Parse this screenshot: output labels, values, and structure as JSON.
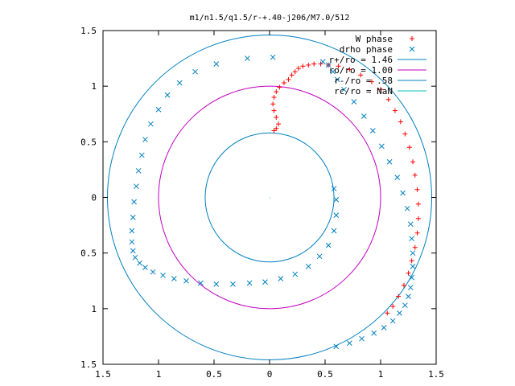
{
  "chart_data": {
    "type": "scatter",
    "title": "m1/n1.5/q1.5/r-+.40-j206/M7.0/512",
    "xlim": [
      -1.5,
      1.5
    ],
    "ylim": [
      -1.5,
      1.5
    ],
    "x_ticks": [
      {
        "value": -1.5,
        "label": "1.5"
      },
      {
        "value": -1,
        "label": "1"
      },
      {
        "value": -0.5,
        "label": "0.5"
      },
      {
        "value": 0,
        "label": "0"
      },
      {
        "value": 0.5,
        "label": "0.5"
      },
      {
        "value": 1,
        "label": "1"
      },
      {
        "value": 1.5,
        "label": "1.5"
      }
    ],
    "y_ticks": [
      {
        "value": 1.5,
        "label": "1.5"
      },
      {
        "value": 1,
        "label": "1"
      },
      {
        "value": 0.5,
        "label": "0.5"
      },
      {
        "value": 0,
        "label": "0"
      },
      {
        "value": -0.5,
        "label": "0.5"
      },
      {
        "value": -1,
        "label": "1"
      },
      {
        "value": -1.5,
        "label": "1.5"
      }
    ],
    "grid": false,
    "legend_position": "top-right",
    "legend": [
      {
        "label": "W phase",
        "marker": "plus",
        "color": "#ff0000"
      },
      {
        "label": "drho phase",
        "marker": "cross",
        "color": "#0080c0"
      },
      {
        "label": "r+/ro = 1.46",
        "marker": "line",
        "color": "#0080c0"
      },
      {
        "label": "ro/ro = 1.00",
        "marker": "line",
        "color": "#c000c0"
      },
      {
        "label": "r-/ro = .58",
        "marker": "line",
        "color": "#0080c0"
      },
      {
        "label": "rc/ro = NaN",
        "marker": "line",
        "color": "#00c0c0"
      }
    ],
    "circles": [
      {
        "name": "r+/ro = 1.46",
        "radius": 1.46,
        "color": "#0080c0"
      },
      {
        "name": "ro/ro = 1.00",
        "radius": 1.0,
        "color": "#c000c0"
      },
      {
        "name": "r-/ro = .58",
        "radius": 0.58,
        "color": "#0080c0"
      }
    ],
    "series": [
      {
        "name": "W phase",
        "marker": "plus",
        "color": "#ff0000",
        "x": [
          0.04,
          0.06,
          0.08,
          0.06,
          0.04,
          0.03,
          0.04,
          0.06,
          0.09,
          0.13,
          0.17,
          0.2,
          0.23,
          0.26,
          0.3,
          0.35,
          0.4,
          0.46,
          0.53,
          0.62,
          0.72,
          0.82,
          0.92,
          1.0,
          1.07,
          1.13,
          1.18,
          1.22,
          1.26,
          1.29,
          1.31,
          1.33,
          1.34,
          1.34,
          1.33,
          1.31,
          1.28,
          1.25,
          1.21,
          1.16,
          1.11,
          1.06
        ],
        "y": [
          0.6,
          0.62,
          0.66,
          0.72,
          0.78,
          0.84,
          0.9,
          0.95,
          0.99,
          1.03,
          1.06,
          1.1,
          1.13,
          1.16,
          1.18,
          1.19,
          1.2,
          1.2,
          1.19,
          1.18,
          1.15,
          1.1,
          1.04,
          0.97,
          0.88,
          0.78,
          0.68,
          0.57,
          0.45,
          0.32,
          0.2,
          0.07,
          -0.06,
          -0.19,
          -0.32,
          -0.45,
          -0.57,
          -0.68,
          -0.79,
          -0.89,
          -0.98,
          -1.04
        ]
      },
      {
        "name": "drho phase",
        "marker": "cross",
        "color": "#0080c0",
        "x": [
          0.03,
          -0.2,
          -0.48,
          -0.67,
          -0.81,
          -0.92,
          -1.0,
          -1.07,
          -1.12,
          -1.15,
          -1.18,
          -1.2,
          -1.22,
          -1.23,
          -1.24,
          -1.24,
          -1.23,
          -1.21,
          -1.17,
          -1.12,
          -1.05,
          -0.96,
          -0.86,
          -0.75,
          -0.62,
          -0.48,
          -0.33,
          -0.18,
          -0.04,
          0.1,
          0.23,
          0.35,
          0.45,
          0.53,
          0.58,
          0.6,
          0.6,
          0.58,
          0.48,
          0.53,
          0.57,
          0.61,
          0.67,
          0.76,
          0.85,
          0.93,
          1.01,
          1.08,
          1.15,
          1.2,
          1.24,
          1.27,
          1.28,
          1.29,
          1.29,
          1.28,
          1.27,
          1.25,
          1.22,
          1.17,
          1.11,
          1.03,
          0.94,
          0.83,
          0.72,
          0.6
        ],
        "y": [
          1.26,
          1.25,
          1.2,
          1.13,
          1.03,
          0.92,
          0.79,
          0.66,
          0.52,
          0.38,
          0.24,
          0.1,
          -0.04,
          -0.18,
          -0.3,
          -0.4,
          -0.48,
          -0.54,
          -0.59,
          -0.63,
          -0.67,
          -0.7,
          -0.73,
          -0.75,
          -0.77,
          -0.78,
          -0.78,
          -0.77,
          -0.76,
          -0.73,
          -0.69,
          -0.62,
          -0.53,
          -0.43,
          -0.3,
          -0.16,
          -0.02,
          0.08,
          1.22,
          1.19,
          1.13,
          1.06,
          0.97,
          0.86,
          0.73,
          0.6,
          0.46,
          0.32,
          0.18,
          0.04,
          -0.1,
          -0.24,
          -0.37,
          -0.5,
          -0.62,
          -0.72,
          -0.81,
          -0.89,
          -0.97,
          -1.04,
          -1.11,
          -1.17,
          -1.22,
          -1.27,
          -1.31,
          -1.34
        ]
      }
    ]
  }
}
